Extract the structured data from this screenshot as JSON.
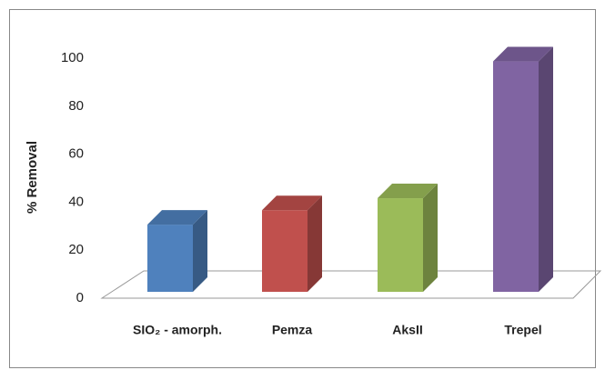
{
  "chart_data": {
    "type": "bar3d",
    "y_label": "% Removal",
    "categories": [
      "SIO₂ - amorph.",
      "Pemza",
      "AksII",
      "Trepel"
    ],
    "values": [
      28,
      34,
      39,
      96
    ],
    "colors": [
      "#4f81bd",
      "#c0504d",
      "#9bbb59",
      "#8064a2"
    ],
    "ylim": [
      0,
      100
    ],
    "yticks": [
      0,
      20,
      40,
      60,
      80,
      100
    ]
  }
}
